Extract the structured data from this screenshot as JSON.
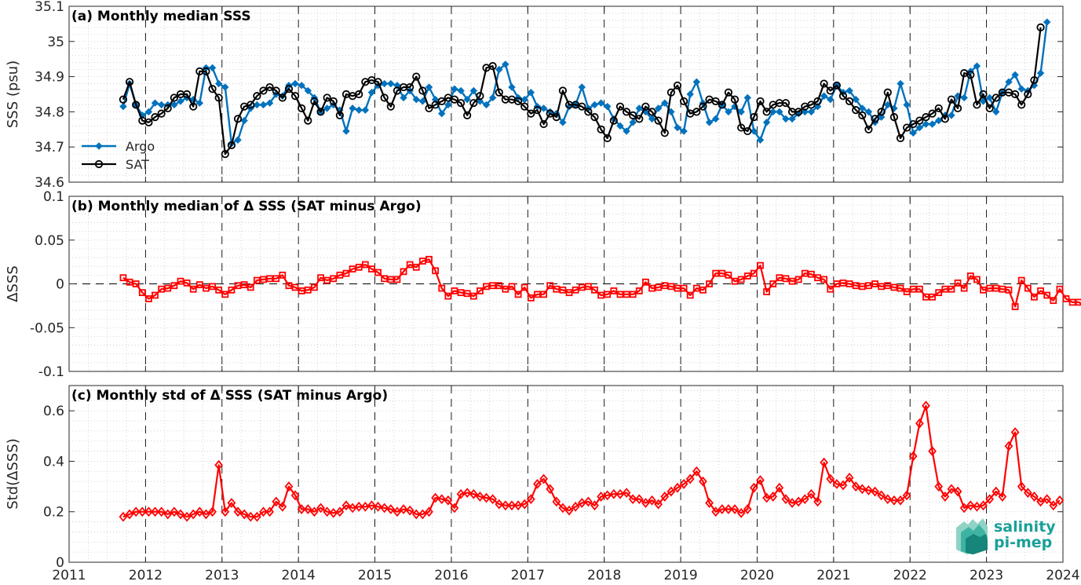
{
  "chart_data": [
    {
      "type": "line",
      "title": "(a) Monthly median SSS",
      "ylabel": "SSS (psu)",
      "ylim": [
        34.6,
        35.1
      ],
      "yticks": [
        "34.6",
        "34.7",
        "34.8",
        "34.9",
        "35",
        "35.1"
      ],
      "xlim": [
        2011,
        2024
      ],
      "grid": true,
      "legend": {
        "position": "bottom-left",
        "entries": [
          "Argo",
          "SAT"
        ]
      },
      "x_start": 2011.708,
      "x_step_months": 1,
      "series": [
        {
          "name": "Argo",
          "values": [
            34.815,
            34.88,
            34.82,
            34.79,
            34.8,
            34.825,
            34.82,
            34.82,
            34.82,
            34.83,
            34.84,
            34.835,
            34.825,
            34.925,
            34.925,
            34.88,
            34.87,
            34.71,
            34.72,
            34.775,
            34.81,
            34.82,
            34.82,
            34.825,
            34.85,
            34.845,
            34.875,
            34.88,
            34.875,
            34.86,
            34.84,
            34.8,
            34.81,
            34.82,
            34.805,
            34.745,
            34.81,
            34.805,
            34.805,
            34.855,
            34.875,
            34.88,
            34.88,
            34.875,
            34.84,
            34.86,
            34.835,
            34.83,
            34.87,
            34.835,
            34.795,
            34.82,
            34.865,
            34.86,
            34.835,
            34.86,
            34.83,
            34.82,
            34.84,
            34.92,
            34.935,
            34.87,
            34.84,
            34.835,
            34.855,
            34.815,
            34.81,
            34.8,
            34.795,
            34.77,
            34.815,
            34.82,
            34.87,
            34.81,
            34.82,
            34.825,
            34.815,
            34.78,
            34.76,
            34.745,
            34.77,
            34.81,
            34.8,
            34.78,
            34.81,
            34.825,
            34.8,
            34.755,
            34.745,
            34.85,
            34.885,
            34.825,
            34.77,
            34.78,
            34.82,
            34.8,
            34.815,
            34.8,
            34.84,
            34.745,
            34.72,
            34.77,
            34.8,
            34.8,
            34.78,
            34.78,
            34.795,
            34.8,
            34.8,
            34.815,
            34.845,
            34.835,
            34.875,
            34.855,
            34.86,
            34.835,
            34.81,
            34.8,
            34.77,
            34.785,
            34.82,
            34.81,
            34.88,
            34.82,
            34.74,
            34.755,
            34.765,
            34.765,
            34.775,
            34.79,
            34.79,
            34.845,
            34.84,
            34.915,
            34.93,
            34.83,
            34.84,
            34.8,
            34.855,
            34.885,
            34.905,
            34.865,
            34.86,
            34.875,
            34.91,
            35.055
          ]
        },
        {
          "name": "SAT",
          "values": [
            34.835,
            34.885,
            34.82,
            34.775,
            34.77,
            34.785,
            34.795,
            34.81,
            34.84,
            34.85,
            34.85,
            34.815,
            34.915,
            34.915,
            34.865,
            34.84,
            34.68,
            34.705,
            34.78,
            34.815,
            34.82,
            34.845,
            34.86,
            34.87,
            34.86,
            34.84,
            34.865,
            34.845,
            34.81,
            34.775,
            34.83,
            34.8,
            34.84,
            34.83,
            34.79,
            34.85,
            34.845,
            34.85,
            34.885,
            34.89,
            34.885,
            34.84,
            34.815,
            34.86,
            34.87,
            34.87,
            34.9,
            34.86,
            34.81,
            34.82,
            34.83,
            34.84,
            34.835,
            34.825,
            34.79,
            34.825,
            34.845,
            34.925,
            34.93,
            34.855,
            34.835,
            34.835,
            34.83,
            34.815,
            34.795,
            34.805,
            34.765,
            34.795,
            34.785,
            34.86,
            34.82,
            34.82,
            34.815,
            34.8,
            34.785,
            34.75,
            34.725,
            34.775,
            34.815,
            34.8,
            34.79,
            34.78,
            34.815,
            34.8,
            34.775,
            34.74,
            34.855,
            34.875,
            34.83,
            34.795,
            34.8,
            34.815,
            34.835,
            34.83,
            34.82,
            34.855,
            34.835,
            34.755,
            34.745,
            34.785,
            34.83,
            34.8,
            34.82,
            34.825,
            34.825,
            34.8,
            34.8,
            34.815,
            34.82,
            34.83,
            34.88,
            34.86,
            34.875,
            34.845,
            34.83,
            34.805,
            34.79,
            34.75,
            34.78,
            34.8,
            34.855,
            34.785,
            34.725,
            34.755,
            34.765,
            34.775,
            34.785,
            34.795,
            34.81,
            34.78,
            34.835,
            34.81,
            34.91,
            34.905,
            34.82,
            34.85,
            34.81,
            34.84,
            34.855,
            34.855,
            34.85,
            34.82,
            34.85,
            34.89,
            35.04
          ]
        }
      ]
    },
    {
      "type": "line",
      "title": "(b) Monthly median of Δ SSS (SAT minus Argo)",
      "ylabel": "ΔSSS",
      "ylim": [
        -0.1,
        0.1
      ],
      "yticks": [
        "-0.1",
        "-0.05",
        "0",
        "0.05",
        "0.1"
      ],
      "xlim": [
        2011,
        2024
      ],
      "grid": true,
      "reference_line": 0,
      "x_start": 2011.708,
      "x_step_months": 1,
      "series": [
        {
          "name": "",
          "values": [
            0.007,
            0.002,
            0.0,
            -0.01,
            -0.017,
            -0.013,
            -0.006,
            -0.005,
            -0.002,
            0.003,
            0.001,
            -0.006,
            -0.001,
            -0.005,
            -0.003,
            -0.007,
            -0.012,
            -0.007,
            -0.002,
            -0.001,
            -0.004,
            0.004,
            0.005,
            0.006,
            0.006,
            0.01,
            -0.002,
            -0.004,
            -0.008,
            -0.007,
            -0.004,
            0.007,
            0.004,
            0.006,
            0.01,
            0.012,
            0.017,
            0.019,
            0.022,
            0.017,
            0.013,
            0.006,
            0.005,
            0.005,
            0.014,
            0.022,
            0.019,
            0.026,
            0.028,
            0.015,
            -0.005,
            -0.014,
            -0.008,
            -0.01,
            -0.011,
            -0.014,
            -0.008,
            -0.003,
            -0.002,
            -0.002,
            -0.006,
            -0.003,
            -0.012,
            -0.004,
            -0.016,
            -0.012,
            -0.012,
            -0.002,
            -0.006,
            -0.007,
            -0.01,
            -0.007,
            -0.004,
            -0.003,
            -0.007,
            -0.013,
            -0.012,
            -0.008,
            -0.012,
            -0.012,
            -0.012,
            -0.008,
            0.002,
            -0.005,
            -0.004,
            -0.002,
            -0.003,
            -0.005,
            -0.005,
            -0.013,
            -0.005,
            -0.007,
            0.0,
            0.012,
            0.012,
            0.01,
            0.003,
            0.005,
            0.009,
            0.012,
            0.021,
            -0.009,
            0.0,
            0.007,
            0.006,
            0.003,
            0.005,
            0.012,
            0.011,
            0.007,
            0.005,
            -0.006,
            0.0,
            0.001,
            0.0,
            -0.002,
            -0.003,
            -0.002,
            0.0,
            -0.003,
            -0.002,
            -0.004,
            -0.005,
            -0.009,
            -0.006,
            -0.006,
            -0.015,
            -0.015,
            -0.01,
            -0.006,
            -0.006,
            0.001,
            -0.005,
            0.009,
            0.005,
            -0.007,
            -0.005,
            -0.005,
            -0.006,
            -0.007,
            -0.026,
            0.004,
            -0.005,
            -0.015,
            -0.008,
            -0.013,
            -0.019,
            -0.006,
            -0.017,
            -0.021,
            -0.021,
            -0.026
          ]
        }
      ]
    },
    {
      "type": "line",
      "title": "(c) Monthly std of Δ SSS (SAT minus Argo)",
      "ylabel": "Std(ΔSSS)",
      "ylim": [
        0,
        0.7
      ],
      "yticks": [
        "0",
        "0.2",
        "0.4",
        "0.6"
      ],
      "xlim": [
        2011,
        2024
      ],
      "xticks": [
        "2011",
        "2012",
        "2013",
        "2014",
        "2015",
        "2016",
        "2017",
        "2018",
        "2019",
        "2020",
        "2021",
        "2022",
        "2023",
        "2024"
      ],
      "grid": true,
      "x_start": 2011.708,
      "x_step_months": 1,
      "series": [
        {
          "name": "",
          "values": [
            0.18,
            0.19,
            0.2,
            0.2,
            0.2,
            0.2,
            0.2,
            0.19,
            0.2,
            0.19,
            0.18,
            0.19,
            0.2,
            0.19,
            0.2,
            0.385,
            0.2,
            0.235,
            0.2,
            0.19,
            0.18,
            0.18,
            0.2,
            0.2,
            0.24,
            0.22,
            0.3,
            0.265,
            0.21,
            0.21,
            0.2,
            0.215,
            0.2,
            0.195,
            0.2,
            0.225,
            0.215,
            0.22,
            0.22,
            0.225,
            0.22,
            0.215,
            0.21,
            0.2,
            0.21,
            0.205,
            0.19,
            0.19,
            0.2,
            0.255,
            0.25,
            0.245,
            0.215,
            0.27,
            0.275,
            0.27,
            0.26,
            0.255,
            0.25,
            0.23,
            0.225,
            0.225,
            0.225,
            0.23,
            0.25,
            0.31,
            0.33,
            0.29,
            0.24,
            0.215,
            0.205,
            0.22,
            0.235,
            0.24,
            0.225,
            0.26,
            0.265,
            0.27,
            0.27,
            0.275,
            0.25,
            0.25,
            0.235,
            0.245,
            0.23,
            0.26,
            0.28,
            0.295,
            0.31,
            0.33,
            0.36,
            0.32,
            0.235,
            0.2,
            0.21,
            0.21,
            0.21,
            0.195,
            0.21,
            0.295,
            0.325,
            0.255,
            0.26,
            0.295,
            0.25,
            0.235,
            0.24,
            0.25,
            0.27,
            0.24,
            0.395,
            0.33,
            0.31,
            0.305,
            0.335,
            0.3,
            0.29,
            0.285,
            0.28,
            0.265,
            0.25,
            0.245,
            0.245,
            0.265,
            0.42,
            0.55,
            0.62,
            0.44,
            0.3,
            0.26,
            0.29,
            0.28,
            0.215,
            0.225,
            0.22,
            0.225,
            0.25,
            0.28,
            0.26,
            0.46,
            0.515,
            0.3,
            0.275,
            0.26,
            0.24,
            0.25,
            0.225,
            0.245
          ]
        }
      ]
    }
  ],
  "colors": {
    "argo": "#0072BD",
    "sat": "#000000",
    "delta": "#FF0000"
  },
  "logo": {
    "line1": "salinity",
    "line2": "pi-mep",
    "color": "#1aa098"
  }
}
